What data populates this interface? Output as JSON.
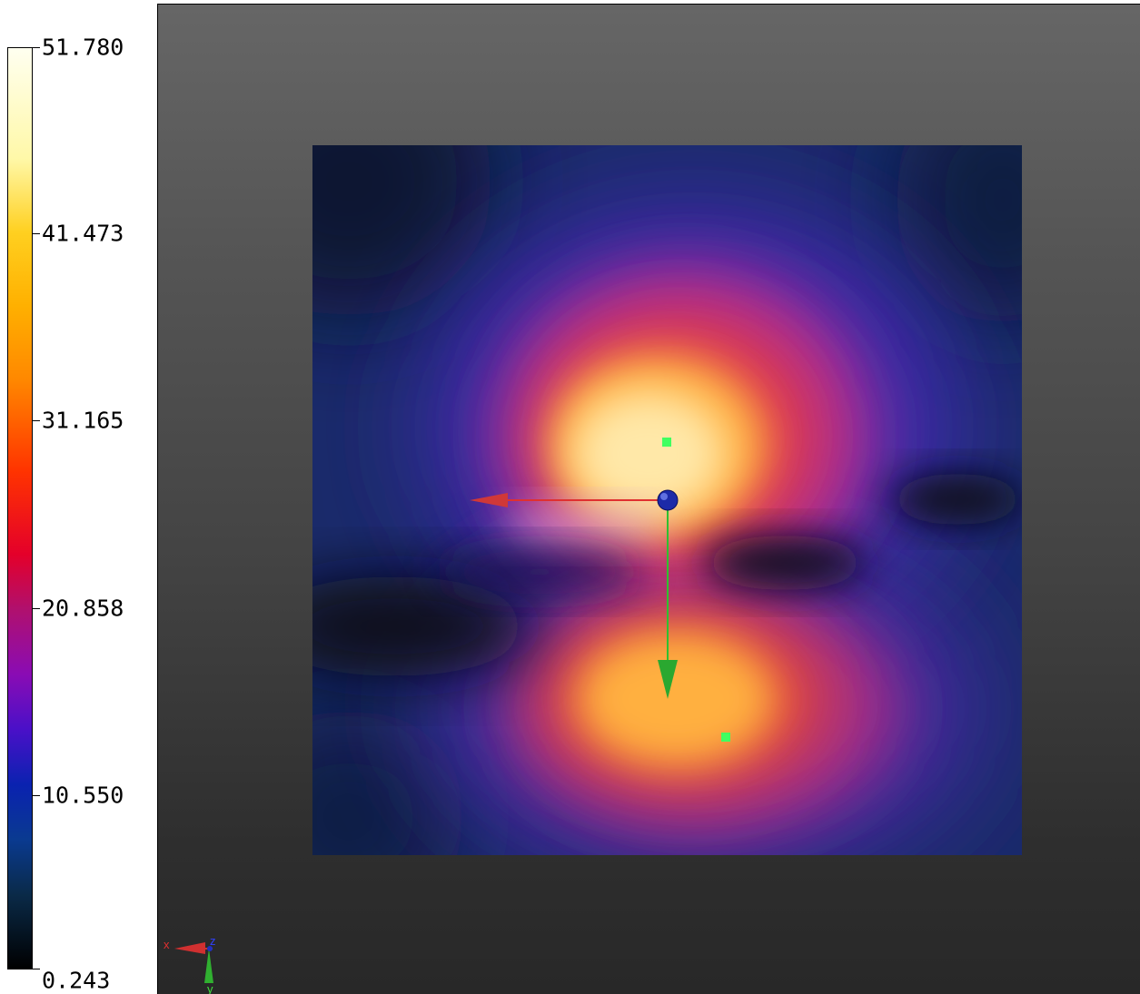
{
  "legend": {
    "ticks": [
      "51.780",
      "41.473",
      "31.165",
      "20.858",
      "10.550",
      "0.243"
    ],
    "min": 0.243,
    "max": 51.78
  },
  "colors": {
    "background_top": "#666666",
    "background_bottom": "#282828",
    "axis_x": "#e03030",
    "axis_y": "#30c030",
    "axis_z": "#2030c0",
    "marker": "#40ff60"
  },
  "axes_triad": {
    "x_label": "x",
    "y_label": "y",
    "z_label": "z"
  }
}
